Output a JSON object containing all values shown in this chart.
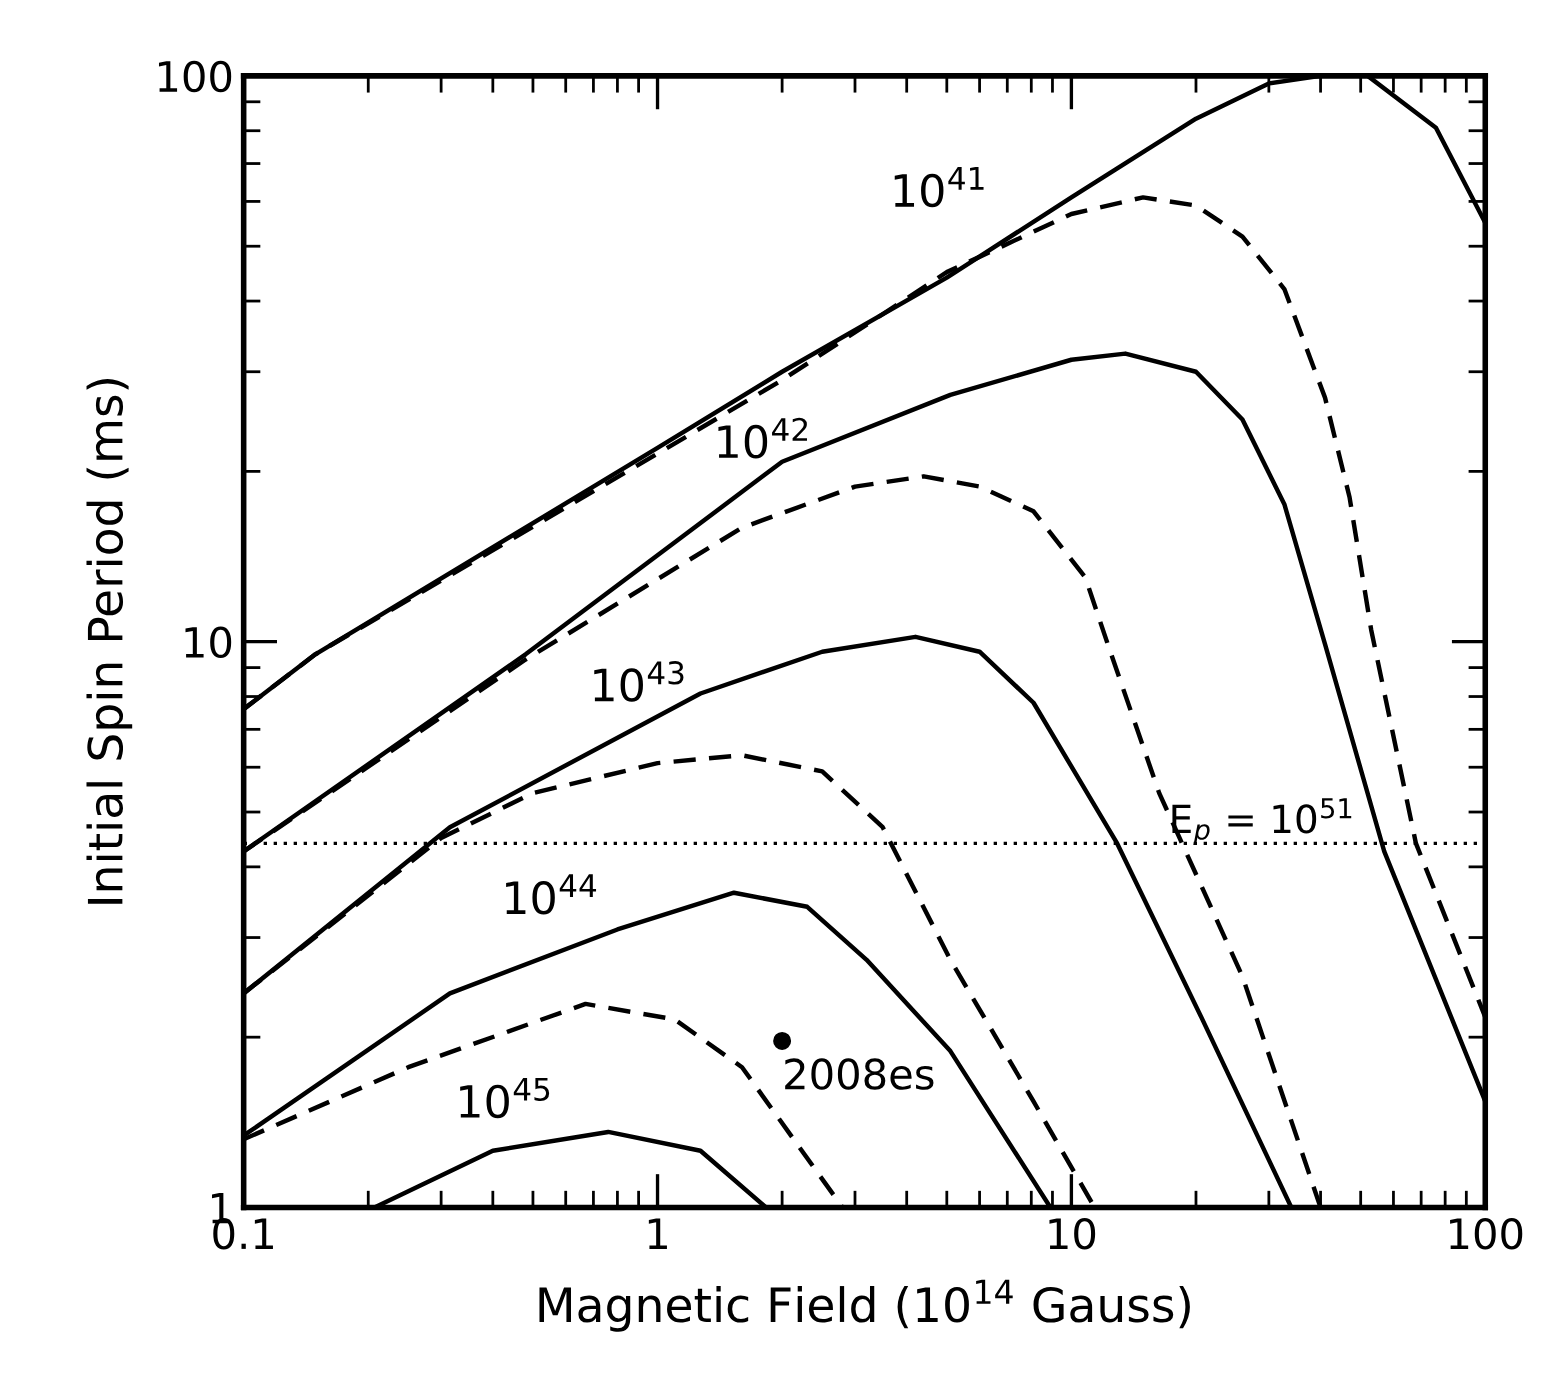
{
  "chart_data": {
    "type": "line",
    "xlabel": "Magnetic Field (10$^{14}$ Gauss)",
    "ylabel": "Initial Spin Period (ms)",
    "log": "xy",
    "xlim": [
      0.1,
      100
    ],
    "ylim": [
      1,
      100
    ],
    "xticks": [
      0.1,
      1,
      10,
      100
    ],
    "yticks": [
      1,
      10,
      100
    ],
    "grid": false,
    "legend": false,
    "marker": "none",
    "series": [
      {
        "name": "10$^{41}$",
        "color": "#000000",
        "line_style": "solid",
        "x": [
          0.1,
          0.149,
          1,
          2,
          5,
          10,
          20,
          30,
          40,
          52,
          76,
          100
        ],
        "values": [
          7.6,
          9.5,
          22,
          30,
          44,
          61,
          84,
          97,
          100,
          100,
          81,
          55
        ]
      },
      {
        "color": "#000000",
        "line_style": "dashed",
        "x": [
          0.1,
          0.149,
          1,
          2,
          5,
          10,
          14.9,
          20,
          25.9,
          32.7,
          41,
          47,
          53,
          68,
          100
        ],
        "values": [
          7.6,
          9.5,
          21.5,
          29,
          45,
          57,
          61,
          59,
          52,
          42,
          27,
          18,
          10.5,
          4.4,
          2.17
        ]
      },
      {
        "name": "10$^{42}$",
        "color": "#000000",
        "line_style": "solid",
        "x": [
          0.1,
          0.48,
          2,
          5.1,
          10,
          13.5,
          20,
          25.9,
          32.7,
          41,
          57,
          100
        ],
        "values": [
          4.26,
          9.5,
          20.8,
          27.3,
          31.5,
          32.3,
          30,
          24.7,
          17.5,
          9.9,
          4.26,
          1.54
        ]
      },
      {
        "color": "#000000",
        "line_style": "dashed",
        "x": [
          0.1,
          0.48,
          1.6,
          3,
          4.4,
          6,
          8.1,
          10.8,
          12.3,
          16.3,
          25.9,
          40
        ],
        "values": [
          4.26,
          9.3,
          15.9,
          18.8,
          19.6,
          18.8,
          17,
          13,
          9.8,
          5.4,
          2.56,
          1
        ]
      },
      {
        "name": "10$^{43}$",
        "color": "#000000",
        "line_style": "solid",
        "x": [
          0.1,
          0.315,
          1.27,
          2.5,
          4.2,
          6,
          8.1,
          12.9,
          20.6,
          34
        ],
        "values": [
          2.39,
          4.7,
          8.1,
          9.6,
          10.2,
          9.6,
          7.8,
          4.4,
          2.17,
          1
        ]
      },
      {
        "color": "#000000",
        "line_style": "dashed",
        "x": [
          0.1,
          0.3,
          0.5,
          1,
          1.6,
          2.5,
          3.5,
          5.1,
          8.1,
          11.2
        ],
        "values": [
          2.39,
          4.5,
          5.4,
          6.1,
          6.3,
          5.9,
          4.7,
          2.74,
          1.54,
          1.02
        ]
      },
      {
        "name": "10$^{44}$",
        "color": "#000000",
        "line_style": "solid",
        "x": [
          0.1,
          0.315,
          0.8,
          1.53,
          2.3,
          3.2,
          5.1,
          8.9
        ],
        "values": [
          1.34,
          2.39,
          3.1,
          3.6,
          3.4,
          2.74,
          1.89,
          1
        ]
      },
      {
        "color": "#000000",
        "line_style": "dashed",
        "x": [
          0.1,
          0.25,
          0.67,
          1.1,
          1.6,
          2.8
        ],
        "values": [
          1.32,
          1.77,
          2.29,
          2.15,
          1.77,
          1
        ]
      },
      {
        "name": "10$^{45}$",
        "color": "#000000",
        "line_style": "solid",
        "x": [
          0.207,
          0.4,
          0.76,
          1.27,
          1.83
        ],
        "values": [
          1,
          1.26,
          1.36,
          1.26,
          1
        ]
      },
      {
        "type": "scatter",
        "name": "2008es",
        "color": "#000000",
        "marker": "circle",
        "x": [
          2.0
        ],
        "values": [
          1.97
        ]
      }
    ],
    "ref_lines": [
      {
        "axis": "y",
        "value": 4.4,
        "line_style": "dotted",
        "color": "#000000"
      }
    ],
    "annotations": [
      "E$_{p}$ = 10$^{51}$"
    ]
  }
}
